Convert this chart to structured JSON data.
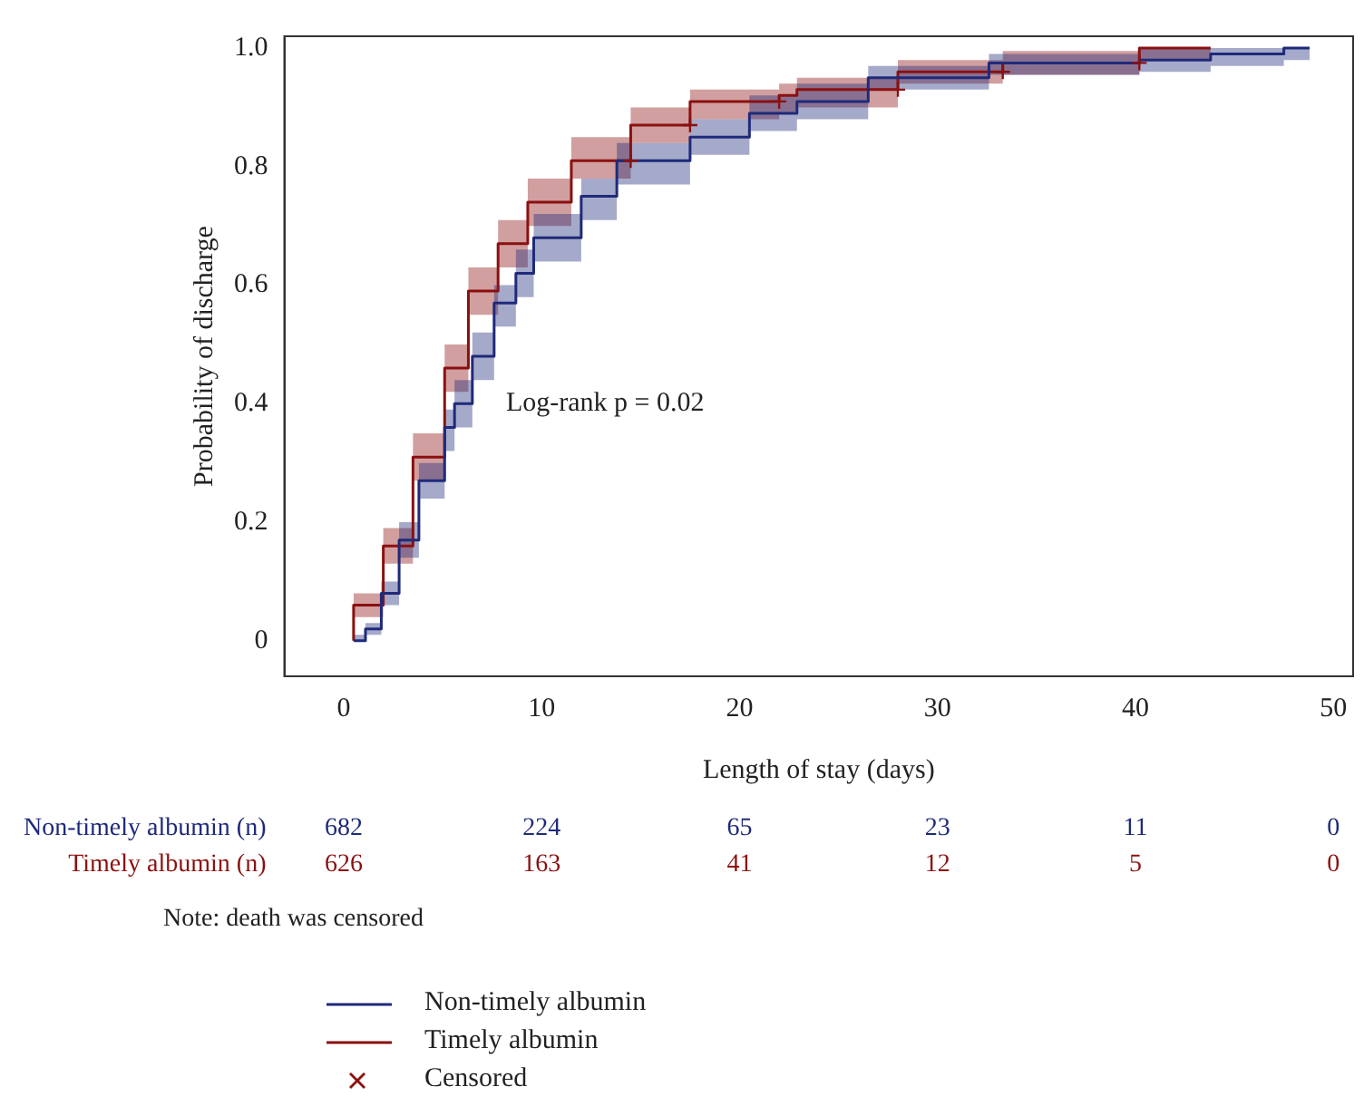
{
  "chart_data": {
    "type": "step",
    "xlabel": "Length of stay (days)",
    "ylabel": "Probability of discharge",
    "xlim": [
      -3,
      51
    ],
    "xticks": [
      0,
      10,
      20,
      30,
      40,
      50
    ],
    "ylim": [
      -0.06,
      1.02
    ],
    "yticks": [
      0,
      0.2,
      0.4,
      0.6,
      0.8,
      {
        "value": 1,
        "label": "1.0"
      }
    ],
    "grid": false,
    "legend": "bottom",
    "series": [
      {
        "name": "Non-timely albumin",
        "type": "step",
        "color": "#1f2a7a",
        "x": [
          0.5,
          1.1,
          1.9,
          2.8,
          3.8,
          5.1,
          5.6,
          6.5,
          7.6,
          8.7,
          9.6,
          12,
          13.8,
          17.5,
          20.5,
          22.9,
          26.5,
          32.6,
          40.2,
          43.8,
          47.5,
          48.8
        ],
        "values": [
          0,
          0,
          0.02,
          0.08,
          0.17,
          0.27,
          0.36,
          0.4,
          0.48,
          0.57,
          0.62,
          0.68,
          0.75,
          0.81,
          0.85,
          0.89,
          0.91,
          0.95,
          0.975,
          0.98,
          0.99,
          1
        ],
        "lower": [
          0,
          0,
          0.01,
          0.06,
          0.14,
          0.24,
          0.32,
          0.36,
          0.44,
          0.53,
          0.58,
          0.64,
          0.71,
          0.77,
          0.82,
          0.86,
          0.88,
          0.93,
          0.955,
          0.96,
          0.97,
          0.98
        ],
        "upper": [
          0,
          0.01,
          0.03,
          0.1,
          0.2,
          0.3,
          0.39,
          0.44,
          0.52,
          0.6,
          0.66,
          0.72,
          0.78,
          0.84,
          0.88,
          0.92,
          0.94,
          0.97,
          0.99,
          1,
          1,
          1
        ]
      },
      {
        "name": "Timely albumin",
        "type": "step",
        "color": "#8b1010",
        "x": [
          0.5,
          2,
          3.5,
          5.1,
          6.3,
          7.8,
          9.3,
          11.5,
          14.5,
          17.5,
          22,
          22.9,
          28,
          33.3,
          40.2,
          43.8
        ],
        "values": [
          0,
          0.06,
          0.16,
          0.31,
          0.46,
          0.59,
          0.67,
          0.74,
          0.81,
          0.87,
          0.91,
          0.92,
          0.93,
          0.96,
          0.975,
          1
        ],
        "lower": [
          0,
          0.04,
          0.13,
          0.27,
          0.42,
          0.55,
          0.63,
          0.7,
          0.78,
          0.84,
          0.88,
          0.89,
          0.9,
          0.94,
          0.955,
          0.98
        ],
        "upper": [
          0.01,
          0.08,
          0.19,
          0.35,
          0.5,
          0.63,
          0.71,
          0.78,
          0.85,
          0.9,
          0.93,
          0.94,
          0.95,
          0.98,
          0.995,
          1
        ]
      },
      {
        "name": "Censored",
        "type": "scatter",
        "marker": "cross",
        "color": "#8b1010",
        "x": [
          14.5,
          17.5,
          22,
          28,
          33.3,
          40.2
        ],
        "values": [
          0.81,
          0.87,
          0.91,
          0.93,
          0.96,
          0.975
        ]
      }
    ],
    "annotations": [
      "Log-rank p = 0.02",
      "Non-timely albumin (n)",
      "682",
      "224",
      "65",
      "23",
      "11",
      "0",
      "Timely albumin (n)",
      "626",
      "163",
      "41",
      "12",
      "5",
      "0",
      "Note: death was censored"
    ]
  }
}
